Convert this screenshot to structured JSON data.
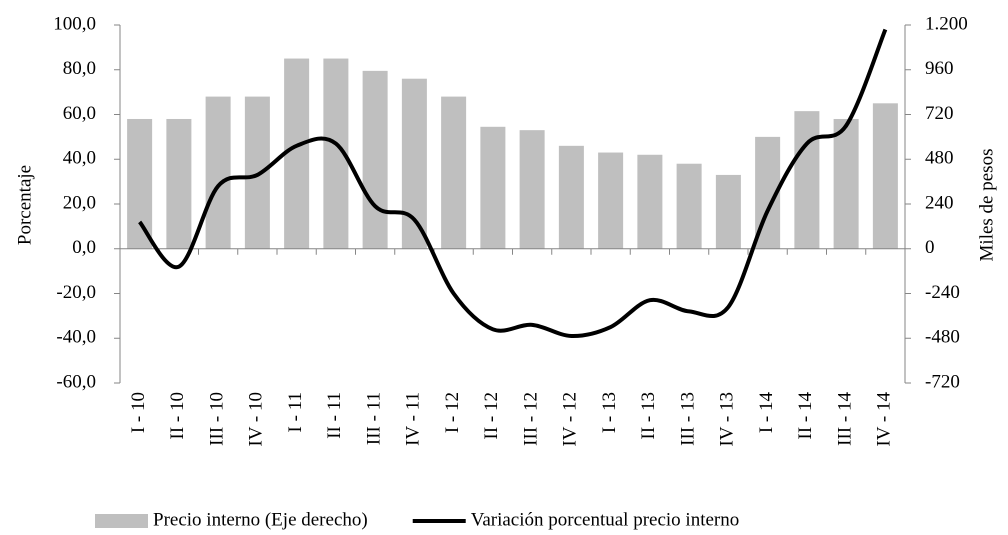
{
  "chart_data": {
    "type": "bar",
    "categories": [
      "I - 10",
      "II - 10",
      "III - 10",
      "IV - 10",
      "I - 11",
      "II - 11",
      "III - 11",
      "IV - 11",
      "I - 12",
      "II - 12",
      "III - 12",
      "IV - 12",
      "I - 13",
      "II - 13",
      "III - 13",
      "IV - 13",
      "I - 14",
      "II - 14",
      "III - 14",
      "IV - 14"
    ],
    "series": [
      {
        "name": "Precio interno (Eje derecho)",
        "type": "bar",
        "axis": "y2",
        "color": "#bfbfbf",
        "values": [
          696,
          696,
          816,
          816,
          1020,
          1020,
          954,
          912,
          816,
          654,
          636,
          552,
          516,
          504,
          456,
          396,
          600,
          738,
          696,
          780
        ]
      },
      {
        "name": "Variación porcentual precio interno",
        "type": "line",
        "color": "#000000",
        "values": [
          12,
          -8,
          28,
          33,
          46,
          47,
          19,
          13,
          -20,
          -36,
          -34,
          -39,
          -35,
          -23,
          -28,
          -26,
          17,
          47,
          55,
          98
        ]
      }
    ],
    "ylabel": "Porcentaje",
    "y2label": "Miles de pesos",
    "ylim": [
      -60,
      100
    ],
    "yticks": [
      {
        "value": -60,
        "label": "-60,0"
      },
      {
        "value": -40,
        "label": "-40,0"
      },
      {
        "value": -20,
        "label": "-20,0"
      },
      {
        "value": 0,
        "label": "0,0"
      },
      {
        "value": 20,
        "label": "20,0"
      },
      {
        "value": 40,
        "label": "40,0"
      },
      {
        "value": 60,
        "label": "60,0"
      },
      {
        "value": 80,
        "label": "80,0"
      },
      {
        "value": 100,
        "label": "100,0"
      }
    ],
    "y2lim": [
      -720,
      1200
    ],
    "y2ticks": [
      -720,
      -480,
      -240,
      0,
      240,
      480,
      720,
      960,
      {
        "value": 1200,
        "label": "1.200"
      }
    ]
  }
}
